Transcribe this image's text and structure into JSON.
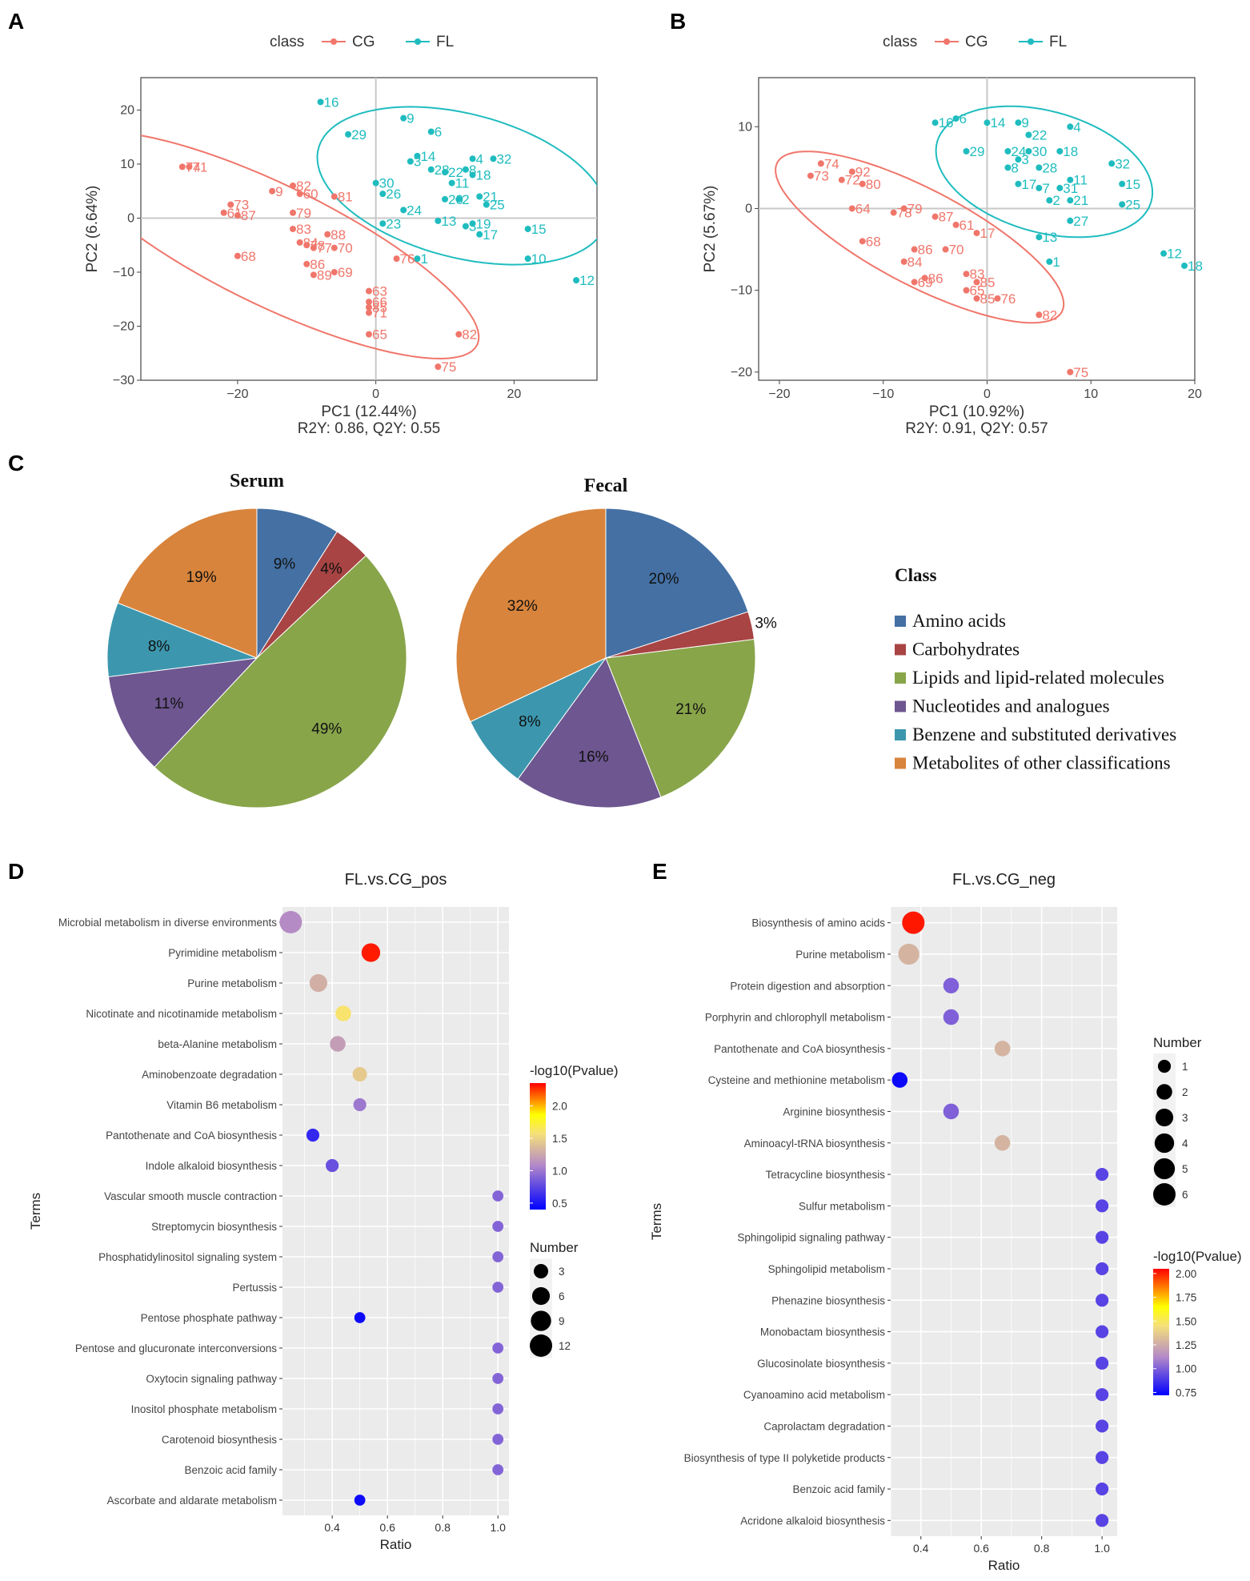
{
  "panel_labels": {
    "a": "A",
    "b": "B",
    "c": "C",
    "d": "D",
    "e": "E"
  },
  "colors": {
    "cg": "#f0766b",
    "fl": "#1fbcbf",
    "panel_bg": "#ebebeb",
    "grid": "#ffffff"
  },
  "chart_data": [
    {
      "id": "A",
      "type": "scatter",
      "legend_title": "class",
      "legend": [
        "CG",
        "FL"
      ],
      "xlabel": "PC1 (12.44%)",
      "subtitle": "R2Y: 0.86, Q2Y: 0.55",
      "ylabel": "PC2 (6.64%)",
      "xlim": [
        -34,
        32
      ],
      "ylim": [
        -30,
        26
      ],
      "xticks": [
        -20,
        0,
        20
      ],
      "yticks": [
        -30,
        -20,
        -10,
        0,
        10,
        20
      ],
      "ellipses": [
        {
          "class": "CG",
          "center": [
            -15,
            -5
          ],
          "rx": 35,
          "ry": 10.5,
          "angle": -33
        },
        {
          "class": "FL",
          "center": [
            12.5,
            6
          ],
          "rx": 22,
          "ry": 13,
          "angle": -22
        }
      ],
      "points": {
        "CG": [
          [
            "74",
            -28,
            9.5
          ],
          [
            "71",
            -27,
            9.5
          ],
          [
            "9",
            -15,
            5
          ],
          [
            "82",
            -12,
            6
          ],
          [
            "60",
            -11,
            4.5
          ],
          [
            "81",
            -6,
            4
          ],
          [
            "73",
            -21,
            2.5
          ],
          [
            "61",
            -22,
            1
          ],
          [
            "87",
            -20,
            0.5
          ],
          [
            "79",
            -12,
            1
          ],
          [
            "83",
            -12,
            -2
          ],
          [
            "88",
            -7,
            -3
          ],
          [
            "84",
            -11,
            -4.5
          ],
          [
            "78",
            -10,
            -5
          ],
          [
            "70",
            -6,
            -5.5
          ],
          [
            "77",
            -9,
            -5.5
          ],
          [
            "68",
            -20,
            -7
          ],
          [
            "86",
            -10,
            -8.5
          ],
          [
            "69",
            -6,
            -10
          ],
          [
            "89",
            -9,
            -10.5
          ],
          [
            "76",
            3,
            -7.5
          ],
          [
            "63",
            -1,
            -13.5
          ],
          [
            "66",
            -1,
            -15.5
          ],
          [
            "85",
            -1,
            -16.5
          ],
          [
            "71",
            -1,
            -17.5
          ],
          [
            "65",
            -1,
            -21.5
          ],
          [
            "82",
            12,
            -21.5
          ],
          [
            "75",
            9,
            -27.5
          ]
        ],
        "FL": [
          [
            "16",
            -8,
            21.5
          ],
          [
            "29",
            -4,
            15.5
          ],
          [
            "9",
            4,
            18.5
          ],
          [
            "6",
            8,
            16
          ],
          [
            "14",
            6,
            11.5
          ],
          [
            "3",
            5,
            10.5
          ],
          [
            "4",
            14,
            11
          ],
          [
            "32",
            17,
            11
          ],
          [
            "28",
            8,
            9
          ],
          [
            "22",
            10,
            8.5
          ],
          [
            "8",
            13,
            9
          ],
          [
            "18",
            14,
            8
          ],
          [
            "11",
            11,
            6.5
          ],
          [
            "30",
            0,
            6.5
          ],
          [
            "26",
            1,
            4.5
          ],
          [
            "21",
            15,
            4
          ],
          [
            "2",
            12,
            3.5
          ],
          [
            "20",
            10,
            3.5
          ],
          [
            "25",
            16,
            2.5
          ],
          [
            "24",
            4,
            1.5
          ],
          [
            "13",
            9,
            -0.5
          ],
          [
            "19",
            14,
            -1
          ],
          [
            "3",
            13,
            -1.5
          ],
          [
            "17",
            15,
            -3
          ],
          [
            "23",
            1,
            -1
          ],
          [
            "15",
            22,
            -2
          ],
          [
            "10",
            22,
            -7.5
          ],
          [
            "1",
            6,
            -7.5
          ],
          [
            "12",
            29,
            -11.5
          ]
        ]
      }
    },
    {
      "id": "B",
      "type": "scatter",
      "legend_title": "class",
      "legend": [
        "CG",
        "FL"
      ],
      "xlabel": "PC1 (10.92%)",
      "subtitle": "R2Y: 0.91, Q2Y: 0.57",
      "ylabel": "PC2 (5.67%)",
      "xlim": [
        -22,
        20
      ],
      "ylim": [
        -21,
        16
      ],
      "xticks": [
        -20,
        -10,
        0,
        10,
        20
      ],
      "yticks": [
        -20,
        -10,
        0,
        10
      ],
      "ellipses": [
        {
          "class": "CG",
          "center": [
            -6.5,
            -3.5
          ],
          "rx": 16.5,
          "ry": 5.5,
          "angle": -35
        },
        {
          "class": "FL",
          "center": [
            5.5,
            4.5
          ],
          "rx": 11,
          "ry": 7.2,
          "angle": -25
        }
      ],
      "points": {
        "CG": [
          [
            "74",
            -16,
            5.5
          ],
          [
            "73",
            -17,
            4
          ],
          [
            "92",
            -13,
            4.5
          ],
          [
            "72",
            -14,
            3.5
          ],
          [
            "80",
            -12,
            3
          ],
          [
            "64",
            -13,
            0
          ],
          [
            "79",
            -8,
            0
          ],
          [
            "78",
            -9,
            -0.5
          ],
          [
            "87",
            -5,
            -1
          ],
          [
            "61",
            -3,
            -2
          ],
          [
            "17",
            -1,
            -3
          ],
          [
            "68",
            -12,
            -4
          ],
          [
            "86",
            -7,
            -5
          ],
          [
            "70",
            -4,
            -5
          ],
          [
            "84",
            -8,
            -6.5
          ],
          [
            "86",
            -6,
            -8.5
          ],
          [
            "69",
            -7,
            -9
          ],
          [
            "83",
            -2,
            -8
          ],
          [
            "85",
            -1,
            -9
          ],
          [
            "65",
            -2,
            -10
          ],
          [
            "85",
            -1,
            -11
          ],
          [
            "76",
            1,
            -11
          ],
          [
            "82",
            5,
            -13
          ],
          [
            "75",
            8,
            -20
          ]
        ],
        "FL": [
          [
            "16",
            -5,
            10.5
          ],
          [
            "6",
            -3,
            11
          ],
          [
            "14",
            0,
            10.5
          ],
          [
            "9",
            3,
            10.5
          ],
          [
            "4",
            8,
            10
          ],
          [
            "22",
            4,
            9
          ],
          [
            "29",
            -2,
            7
          ],
          [
            "24",
            2,
            7
          ],
          [
            "30",
            4,
            7
          ],
          [
            "18",
            7,
            7
          ],
          [
            "32",
            12,
            5.5
          ],
          [
            "3",
            3,
            6
          ],
          [
            "28",
            5,
            5
          ],
          [
            "8",
            2,
            5
          ],
          [
            "11",
            8,
            3.5
          ],
          [
            "15",
            13,
            3
          ],
          [
            "17",
            3,
            3
          ],
          [
            "7",
            5,
            2.5
          ],
          [
            "31",
            7,
            2.5
          ],
          [
            "25",
            13,
            0.5
          ],
          [
            "21",
            8,
            1
          ],
          [
            "2",
            6,
            1
          ],
          [
            "27",
            8,
            -1.5
          ],
          [
            "13",
            5,
            -3.5
          ],
          [
            "1",
            6,
            -6.5
          ],
          [
            "12",
            17,
            -5.5
          ],
          [
            "18",
            19,
            -7
          ]
        ]
      }
    },
    {
      "id": "C-serum",
      "type": "pie",
      "title": "Serum",
      "labels": [
        "Amino acids",
        "Carbohydrates",
        "Lipids and lipid-related molecules",
        "Nucleotides and analogues",
        "Benzene and substituted derivatives",
        "Metabolites of other classifications"
      ],
      "values": [
        9,
        4,
        49,
        11,
        8,
        19
      ],
      "value_labels": [
        "9%",
        "4%",
        "49%",
        "11%",
        "8%",
        "19%"
      ]
    },
    {
      "id": "C-fecal",
      "type": "pie",
      "title": "Fecal",
      "labels": [
        "Amino acids",
        "Carbohydrates",
        "Lipids and lipid-related molecules",
        "Nucleotides and analogues",
        "Benzene and substituted derivatives",
        "Metabolites of other classifications"
      ],
      "values": [
        20,
        3,
        21,
        16,
        8,
        32
      ],
      "value_labels": [
        "20%",
        "3%",
        "21%",
        "16%",
        "8%",
        "32%"
      ]
    },
    {
      "id": "D",
      "type": "scatter",
      "title": "FL.vs.CG_pos",
      "xlabel": "Ratio",
      "ylabel": "Terms",
      "xlim": [
        0.22,
        1.04
      ],
      "xticks": [
        "0.4",
        "0.6",
        "0.8",
        "1.0"
      ],
      "xtick_values": [
        0.4,
        0.6,
        0.8,
        1.0
      ],
      "terms": [
        "Microbial metabolism in diverse environments",
        "Pyrimidine metabolism",
        "Purine metabolism",
        "Nicotinate and nicotinamide metabolism",
        "beta-Alanine metabolism",
        "Aminobenzoate degradation",
        "Vitamin B6 metabolism",
        "Pantothenate and CoA biosynthesis",
        "Indole alkaloid biosynthesis",
        "Vascular smooth muscle contraction",
        "Streptomycin biosynthesis",
        "Phosphatidylinositol signaling system",
        "Pertussis",
        "Pentose phosphate pathway",
        "Pentose and glucuronate interconversions",
        "Oxytocin signaling pathway",
        "Inositol phosphate metabolism",
        "Carotenoid biosynthesis",
        "Benzoic acid family",
        "Ascorbate and aldarate metabolism"
      ],
      "ratio": [
        0.25,
        0.54,
        0.35,
        0.44,
        0.42,
        0.5,
        0.5,
        0.33,
        0.4,
        1.0,
        1.0,
        1.0,
        1.0,
        0.5,
        1.0,
        1.0,
        1.0,
        1.0,
        1.0,
        0.5
      ],
      "number": [
        12,
        7,
        6,
        4,
        4,
        3,
        2,
        2,
        2,
        1,
        1,
        1,
        1,
        1,
        1,
        1,
        1,
        1,
        1,
        1
      ],
      "neglog10p": [
        1.1,
        2.3,
        1.3,
        1.6,
        1.2,
        1.45,
        1.0,
        0.6,
        0.8,
        0.9,
        0.9,
        0.9,
        0.9,
        0.45,
        0.9,
        0.9,
        0.9,
        0.9,
        0.9,
        0.45
      ],
      "color_legend_title": "-log10(Pvalue)",
      "color_ticks": [
        "0.5",
        "1.0",
        "1.5",
        "2.0"
      ],
      "color_tick_values": [
        0.5,
        1.0,
        1.5,
        2.0
      ],
      "color_range": [
        0.4,
        2.35
      ],
      "size_legend_title": "Number",
      "size_legend": [
        "3",
        "6",
        "9",
        "12"
      ],
      "size_legend_values": [
        3,
        6,
        9,
        12
      ],
      "size_max": 12
    },
    {
      "id": "E",
      "type": "scatter",
      "title": "FL.vs.CG_neg",
      "xlabel": "Ratio",
      "ylabel": "Terms",
      "xlim": [
        0.3,
        1.05
      ],
      "xticks": [
        "0.4",
        "0.6",
        "0.8",
        "1.0"
      ],
      "xtick_values": [
        0.4,
        0.6,
        0.8,
        1.0
      ],
      "terms": [
        "Biosynthesis of amino acids",
        "Purine metabolism",
        "Protein digestion and absorption",
        "Porphyrin and chlorophyll metabolism",
        "Pantothenate and CoA biosynthesis",
        "Cysteine and methionine metabolism",
        "Arginine biosynthesis",
        "Aminoacyl-tRNA biosynthesis",
        "Tetracycline biosynthesis",
        "Sulfur metabolism",
        "Sphingolipid signaling pathway",
        "Sphingolipid metabolism",
        "Phenazine biosynthesis",
        "Monobactam biosynthesis",
        "Glucosinolate biosynthesis",
        "Cyanoamino acid metabolism",
        "Caprolactam degradation",
        "Biosynthesis of type II polyketide products",
        "Benzoic acid family",
        "Acridone alkaloid biosynthesis"
      ],
      "ratio": [
        0.375,
        0.36,
        0.5,
        0.5,
        0.67,
        0.33,
        0.5,
        0.67,
        1.0,
        1.0,
        1.0,
        1.0,
        1.0,
        1.0,
        1.0,
        1.0,
        1.0,
        1.0,
        1.0,
        1.0
      ],
      "number": [
        6,
        5,
        2,
        2,
        2,
        2,
        2,
        2,
        1,
        1,
        1,
        1,
        1,
        1,
        1,
        1,
        1,
        1,
        1,
        1
      ],
      "neglog10p": [
        2.02,
        1.35,
        1.05,
        1.05,
        1.35,
        0.75,
        1.05,
        1.35,
        0.95,
        0.95,
        0.95,
        0.95,
        0.95,
        0.95,
        0.95,
        0.95,
        0.95,
        0.95,
        0.95,
        0.95
      ],
      "color_legend_title": "-log10(Pvalue)",
      "color_ticks": [
        "2.00",
        "1.75",
        "1.50",
        "1.25",
        "1.00",
        "0.75"
      ],
      "color_tick_values": [
        2.0,
        1.75,
        1.5,
        1.25,
        1.0,
        0.75
      ],
      "color_range": [
        0.72,
        2.05
      ],
      "size_legend_title": "Number",
      "size_legend": [
        "1",
        "2",
        "3",
        "4",
        "5",
        "6"
      ],
      "size_legend_values": [
        1,
        2,
        3,
        4,
        5,
        6
      ],
      "size_max": 6
    }
  ],
  "pie_legend": {
    "title": "Class",
    "items": [
      "Amino acids",
      "Carbohydrates",
      "Lipids and lipid-related molecules",
      "Nucleotides and analogues",
      "Benzene and substituted derivatives",
      "Metabolites of other classifications"
    ],
    "colors": [
      "#4470a4",
      "#a84444",
      "#88a54a",
      "#6e5690",
      "#3c97ae",
      "#d8843c"
    ]
  }
}
